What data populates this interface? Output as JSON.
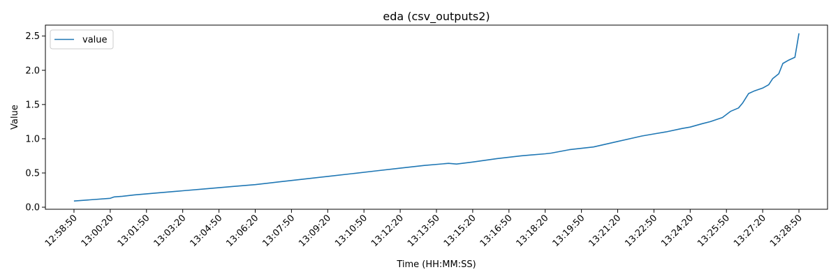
{
  "chart_data": {
    "type": "line",
    "title": "eda (csv_outputs2)",
    "xlabel": "Time (HH:MM:SS)",
    "ylabel": "Value",
    "grid": false,
    "legend_position": "top-left",
    "xlim": [
      "12:57:39",
      "13:30:01"
    ],
    "ylim": [
      -0.03,
      2.66
    ],
    "x_ticks": [
      "12:58:50",
      "13:00:20",
      "13:01:50",
      "13:03:20",
      "13:04:50",
      "13:06:20",
      "13:07:50",
      "13:09:20",
      "13:10:50",
      "13:12:20",
      "13:13:50",
      "13:15:20",
      "13:16:50",
      "13:18:20",
      "13:19:50",
      "13:21:20",
      "13:22:50",
      "13:24:20",
      "13:25:50",
      "13:27:20",
      "13:28:50"
    ],
    "y_ticks": [
      "0.0",
      "0.5",
      "1.0",
      "1.5",
      "2.0",
      "2.5"
    ],
    "series": [
      {
        "name": "value",
        "color": "#1f77b4",
        "x": [
          "12:58:50",
          "13:00:20",
          "13:00:30",
          "13:00:50",
          "13:01:20",
          "13:02:20",
          "13:03:20",
          "13:04:20",
          "13:05:20",
          "13:06:20",
          "13:07:20",
          "13:08:20",
          "13:09:20",
          "13:10:20",
          "13:11:20",
          "13:12:20",
          "13:13:20",
          "13:14:20",
          "13:14:40",
          "13:15:20",
          "13:16:20",
          "13:17:20",
          "13:18:20",
          "13:18:35",
          "13:19:20",
          "13:20:20",
          "13:21:20",
          "13:22:20",
          "13:22:50",
          "13:23:20",
          "13:24:00",
          "13:24:20",
          "13:24:50",
          "13:25:10",
          "13:25:40",
          "13:26:00",
          "13:26:20",
          "13:26:30",
          "13:26:45",
          "13:27:00",
          "13:27:20",
          "13:27:35",
          "13:27:45",
          "13:28:00",
          "13:28:10",
          "13:28:25",
          "13:28:40",
          "13:28:50"
        ],
        "values": [
          0.09,
          0.13,
          0.15,
          0.16,
          0.18,
          0.21,
          0.24,
          0.27,
          0.3,
          0.33,
          0.37,
          0.41,
          0.45,
          0.49,
          0.53,
          0.57,
          0.61,
          0.64,
          0.63,
          0.66,
          0.71,
          0.75,
          0.78,
          0.79,
          0.84,
          0.88,
          0.96,
          1.04,
          1.07,
          1.1,
          1.15,
          1.17,
          1.22,
          1.25,
          1.31,
          1.4,
          1.45,
          1.52,
          1.66,
          1.7,
          1.74,
          1.79,
          1.88,
          1.95,
          2.1,
          2.15,
          2.19,
          2.54
        ]
      }
    ]
  }
}
